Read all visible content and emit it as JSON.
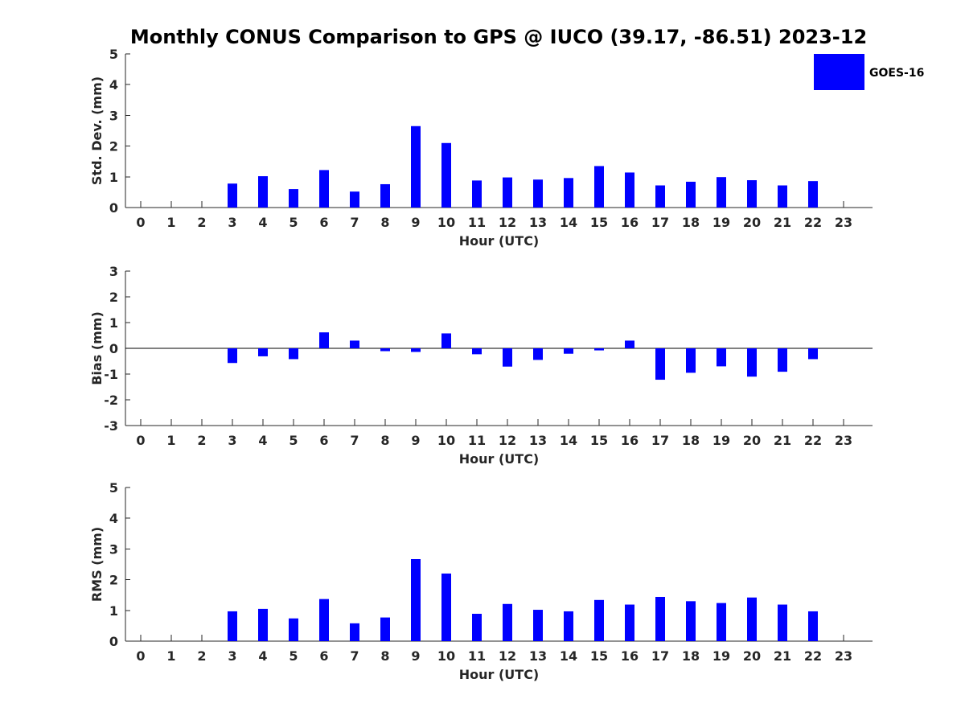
{
  "chart_data": [
    {
      "type": "bar",
      "title": "Monthly CONUS Comparison to GPS @ IUCO (39.17, -86.51) 2023-12",
      "xlabel": "Hour (UTC)",
      "ylabel": "Std. Dev. (mm)",
      "ylim": [
        0,
        5
      ],
      "yticks": [
        0,
        1,
        2,
        3,
        4,
        5
      ],
      "categories": [
        "0",
        "1",
        "2",
        "3",
        "4",
        "5",
        "6",
        "7",
        "8",
        "9",
        "10",
        "11",
        "12",
        "13",
        "14",
        "15",
        "16",
        "17",
        "18",
        "19",
        "20",
        "21",
        "22",
        "23"
      ],
      "legend": {
        "position": "top-right",
        "entries": [
          "GOES-16"
        ]
      },
      "series": [
        {
          "name": "GOES-16",
          "color": "#0000ff",
          "values": [
            null,
            null,
            null,
            0.78,
            1.02,
            0.6,
            1.22,
            0.52,
            0.76,
            2.65,
            2.1,
            0.88,
            0.98,
            0.91,
            0.96,
            1.35,
            1.14,
            0.72,
            0.84,
            0.99,
            0.89,
            0.72,
            0.86,
            null
          ]
        }
      ]
    },
    {
      "type": "bar",
      "xlabel": "Hour (UTC)",
      "ylabel": "Bias (mm)",
      "ylim": [
        -3,
        3
      ],
      "yticks": [
        -3,
        -2,
        -1,
        0,
        1,
        2,
        3
      ],
      "categories": [
        "0",
        "1",
        "2",
        "3",
        "4",
        "5",
        "6",
        "7",
        "8",
        "9",
        "10",
        "11",
        "12",
        "13",
        "14",
        "15",
        "16",
        "17",
        "18",
        "19",
        "20",
        "21",
        "22",
        "23"
      ],
      "series": [
        {
          "name": "GOES-16",
          "color": "#0000ff",
          "values": [
            null,
            null,
            null,
            -0.57,
            -0.31,
            -0.42,
            0.62,
            0.3,
            -0.11,
            -0.14,
            0.58,
            -0.23,
            -0.71,
            -0.45,
            -0.21,
            -0.08,
            0.3,
            -1.22,
            -0.95,
            -0.7,
            -1.1,
            -0.91,
            -0.42,
            null
          ]
        }
      ]
    },
    {
      "type": "bar",
      "xlabel": "Hour (UTC)",
      "ylabel": "RMS (mm)",
      "ylim": [
        0,
        5
      ],
      "yticks": [
        0,
        1,
        2,
        3,
        4,
        5
      ],
      "categories": [
        "0",
        "1",
        "2",
        "3",
        "4",
        "5",
        "6",
        "7",
        "8",
        "9",
        "10",
        "11",
        "12",
        "13",
        "14",
        "15",
        "16",
        "17",
        "18",
        "19",
        "20",
        "21",
        "22",
        "23"
      ],
      "series": [
        {
          "name": "GOES-16",
          "color": "#0000ff",
          "values": [
            null,
            null,
            null,
            0.97,
            1.05,
            0.74,
            1.37,
            0.58,
            0.77,
            2.67,
            2.2,
            0.89,
            1.21,
            1.02,
            0.97,
            1.34,
            1.19,
            1.44,
            1.3,
            1.24,
            1.42,
            1.19,
            0.97,
            null
          ]
        }
      ]
    }
  ]
}
